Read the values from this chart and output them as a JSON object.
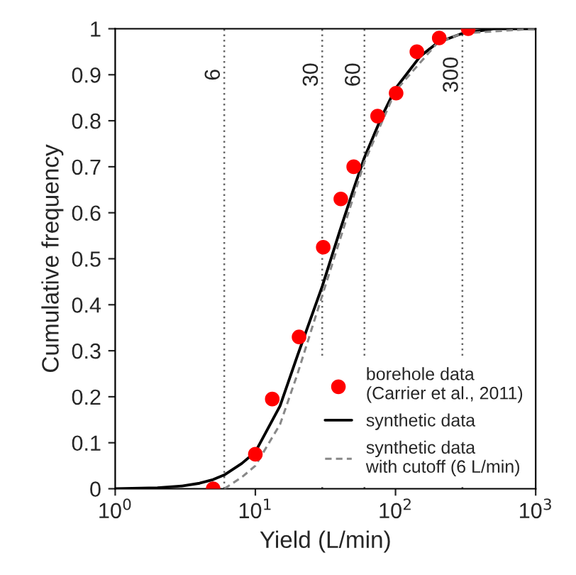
{
  "chart_data": {
    "type": "scatter",
    "xlabel": "Yield (L/min)",
    "ylabel": "Cumulative frequency",
    "log": "x",
    "xlim": [
      1,
      1000
    ],
    "xticks": [
      {
        "value": 1,
        "label": "10$^{0}$"
      },
      {
        "value": 10,
        "label": "10$^{1}$"
      },
      {
        "value": 100,
        "label": "10$^{2}$"
      },
      {
        "value": 1000,
        "label": "10$^{3}$"
      }
    ],
    "ylim": [
      0,
      1
    ],
    "yticks": [
      0,
      0.1,
      0.2,
      0.3,
      0.4,
      0.5,
      0.6,
      0.7,
      0.8,
      0.9,
      1
    ],
    "series": [
      {
        "name": "borehole data\n(Carrier et al., 2011)",
        "color": "#ff0000",
        "marker": "circle",
        "x": [
          5,
          10,
          13.2,
          20.5,
          30.5,
          40.7,
          50.3,
          74.5,
          101,
          142,
          205,
          330
        ],
        "values": [
          0,
          0.075,
          0.195,
          0.33,
          0.525,
          0.63,
          0.7,
          0.81,
          0.86,
          0.95,
          0.98,
          1
        ]
      },
      {
        "name": "synthetic data",
        "type": "line",
        "color": "#000000",
        "line_style": "solid",
        "x": [
          1,
          2,
          3,
          4,
          5,
          6,
          8,
          10,
          15,
          20,
          30,
          40,
          50,
          60,
          80,
          100,
          150,
          200,
          300,
          500,
          1000
        ],
        "values": [
          0,
          0.002,
          0.006,
          0.012,
          0.02,
          0.03,
          0.055,
          0.08,
          0.18,
          0.29,
          0.44,
          0.56,
          0.65,
          0.72,
          0.81,
          0.87,
          0.94,
          0.97,
          0.99,
          1,
          1
        ]
      },
      {
        "name": "synthetic data\nwith cutoff (6 L/min)",
        "type": "line",
        "color": "#888888",
        "line_style": "dashed",
        "x": [
          6,
          8,
          10,
          15,
          20,
          30,
          40,
          60,
          100,
          200,
          300,
          1000
        ],
        "values": [
          0,
          0.025,
          0.05,
          0.14,
          0.25,
          0.42,
          0.54,
          0.71,
          0.865,
          0.97,
          0.99,
          1
        ]
      }
    ],
    "ref_lines": [
      {
        "axis": "x",
        "value": 6,
        "label": "6",
        "color": "#666666",
        "line_style": "dotted"
      },
      {
        "axis": "x",
        "value": 30,
        "label": "30",
        "color": "#666666",
        "line_style": "dotted"
      },
      {
        "axis": "x",
        "value": 60,
        "label": "60",
        "color": "#666666",
        "line_style": "dotted"
      },
      {
        "axis": "x",
        "value": 300,
        "label": "300",
        "color": "#666666",
        "line_style": "dotted"
      }
    ],
    "grid": false,
    "legend": "bottom right"
  }
}
